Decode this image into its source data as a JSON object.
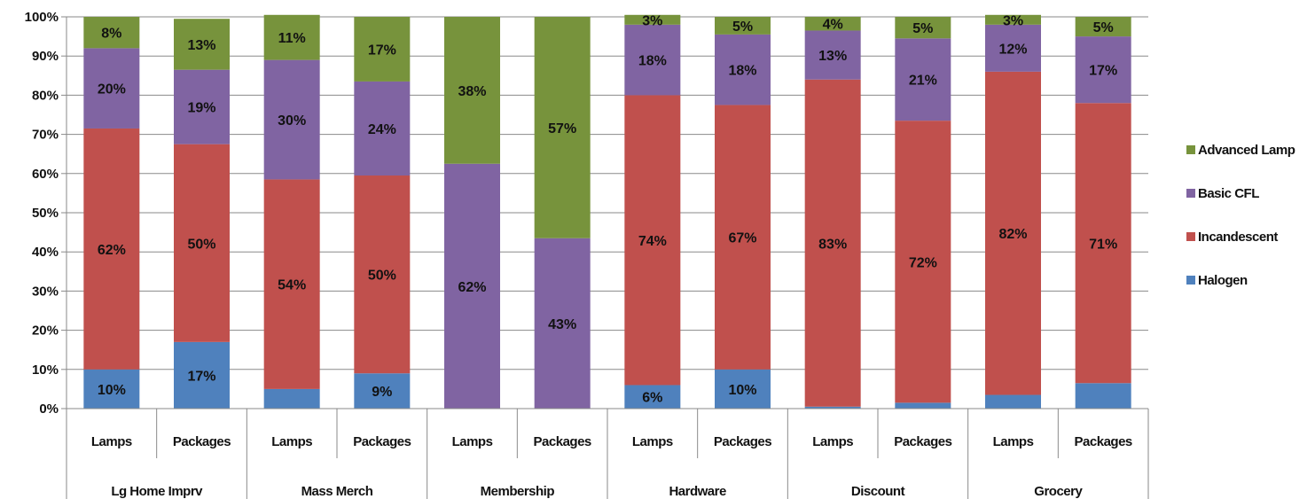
{
  "chart_data": {
    "type": "bar",
    "stacked": "percent",
    "groups": [
      "Lg Home Imprv",
      "Mass Merch",
      "Membership",
      "Hardware",
      "Discount",
      "Grocery"
    ],
    "subcategories": [
      "Lamps",
      "Packages"
    ],
    "categories": [
      "Lamps",
      "Packages",
      "Lamps",
      "Packages",
      "Lamps",
      "Packages",
      "Lamps",
      "Packages",
      "Lamps",
      "Packages",
      "Lamps",
      "Packages"
    ],
    "series": [
      {
        "name": "Halogen",
        "color": "#4f81bd",
        "values": [
          10,
          17,
          5,
          9,
          0,
          0,
          6,
          10,
          0.5,
          1.5,
          3.5,
          6.5
        ],
        "labels": [
          "10%",
          "17%",
          "",
          "9%",
          "",
          "",
          "6%",
          "10%",
          "",
          "",
          "",
          ""
        ]
      },
      {
        "name": "Incandescent",
        "color": "#c0504d",
        "values": [
          61.5,
          50.5,
          53.5,
          50.5,
          0,
          0,
          74,
          67.5,
          83.5,
          72,
          82.5,
          71.5
        ],
        "labels": [
          "62%",
          "50%",
          "54%",
          "50%",
          "",
          "",
          "74%",
          "67%",
          "83%",
          "72%",
          "82%",
          "71%"
        ]
      },
      {
        "name": "Basic CFL",
        "color": "#8064a2",
        "values": [
          20.5,
          19,
          30.5,
          24,
          62.5,
          43.5,
          18,
          18,
          12.5,
          21,
          12,
          17
        ],
        "labels": [
          "20%",
          "19%",
          "30%",
          "24%",
          "62%",
          "43%",
          "18%",
          "18%",
          "13%",
          "21%",
          "12%",
          "17%"
        ]
      },
      {
        "name": "Advanced Lamp",
        "color": "#77933c",
        "values": [
          8,
          13,
          11.5,
          16.5,
          37.5,
          56.5,
          2.5,
          4.5,
          3.5,
          5.5,
          2.5,
          5
        ],
        "labels": [
          "8%",
          "13%",
          "11%",
          "17%",
          "38%",
          "57%",
          "3%",
          "5%",
          "4%",
          "5%",
          "3%",
          "5%"
        ]
      }
    ],
    "ylim": [
      0,
      100
    ],
    "yticks": [
      "0%",
      "10%",
      "20%",
      "30%",
      "40%",
      "50%",
      "60%",
      "70%",
      "80%",
      "90%",
      "100%"
    ],
    "grid": true,
    "legend": {
      "placement": "right",
      "items": [
        "Advanced Lamp",
        "Basic CFL",
        "Incandescent",
        "Halogen"
      ]
    }
  }
}
